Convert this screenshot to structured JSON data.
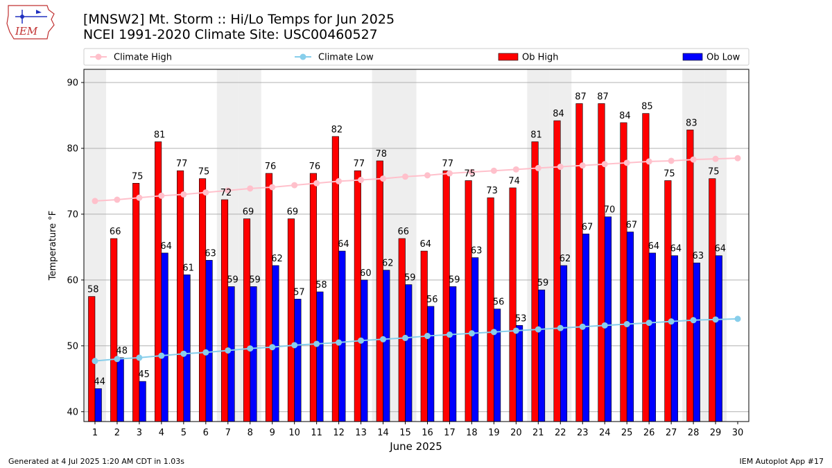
{
  "header": {
    "title_line1": "[MNSW2] Mt. Storm :: Hi/Lo Temps for Jun 2025",
    "title_line2": "NCEI 1991-2020 Climate Site: USC00460527",
    "logo_text": "IEM"
  },
  "footer": {
    "generated": "Generated at 4 Jul 2025 1:20 AM CDT in 1.03s",
    "app": "IEM Autoplot App #17"
  },
  "colors": {
    "climate_high": "#ffc0cb",
    "climate_low": "#87ceeb",
    "ob_high": "#ff0000",
    "ob_low": "#0000ff",
    "weekend_band": "#eeeeee",
    "grid": "#b0b0b0"
  },
  "chart_data": {
    "type": "bar",
    "xlabel": "June 2025",
    "ylabel": "Temperature °F",
    "ylim": [
      38.5,
      92
    ],
    "yticks": [
      40,
      50,
      60,
      70,
      80,
      90
    ],
    "grid": "horizontal",
    "legend_placement": "top",
    "x": [
      1,
      2,
      3,
      4,
      5,
      6,
      7,
      8,
      9,
      10,
      11,
      12,
      13,
      14,
      15,
      16,
      17,
      18,
      19,
      20,
      21,
      22,
      23,
      24,
      25,
      26,
      27,
      28,
      29,
      30
    ],
    "weekend_days": [
      1,
      7,
      8,
      14,
      15,
      21,
      22,
      28,
      29
    ],
    "series": [
      {
        "name": "Climate High",
        "kind": "line",
        "values": [
          72.0,
          72.2,
          72.5,
          72.8,
          73.0,
          73.3,
          73.6,
          73.9,
          74.1,
          74.4,
          74.7,
          75.0,
          75.2,
          75.4,
          75.7,
          75.9,
          76.2,
          76.4,
          76.6,
          76.8,
          77.0,
          77.2,
          77.4,
          77.6,
          77.8,
          78.0,
          78.1,
          78.3,
          78.4,
          78.5
        ]
      },
      {
        "name": "Climate Low",
        "kind": "line",
        "values": [
          47.7,
          48.0,
          48.2,
          48.5,
          48.8,
          49.0,
          49.3,
          49.6,
          49.8,
          50.1,
          50.3,
          50.5,
          50.8,
          51.0,
          51.2,
          51.5,
          51.7,
          51.9,
          52.1,
          52.3,
          52.5,
          52.7,
          52.9,
          53.1,
          53.3,
          53.5,
          53.7,
          53.9,
          54.0,
          54.1
        ]
      },
      {
        "name": "Ob High",
        "kind": "bar",
        "values": [
          57.5,
          66.3,
          74.7,
          81.0,
          76.6,
          75.4,
          72.2,
          69.3,
          76.2,
          69.3,
          76.2,
          81.8,
          76.6,
          78.1,
          66.3,
          64.4,
          76.6,
          75.1,
          72.5,
          74.0,
          81.0,
          84.2,
          86.8,
          86.8,
          83.9,
          85.3,
          75.1,
          82.8,
          75.4,
          null
        ],
        "labels": [
          "58",
          "66",
          "75",
          "81",
          "77",
          "75",
          "72",
          "69",
          "76",
          "69",
          "76",
          "82",
          "77",
          "78",
          "66",
          "64",
          "77",
          "75",
          "73",
          "74",
          "81",
          "84",
          "87",
          "87",
          "84",
          "85",
          "75",
          "83",
          "75",
          ""
        ]
      },
      {
        "name": "Ob Low",
        "kind": "bar",
        "values": [
          43.5,
          48.2,
          44.6,
          64.1,
          60.8,
          63.0,
          59.0,
          59.0,
          62.2,
          57.1,
          58.2,
          64.4,
          60.0,
          61.5,
          59.3,
          56.0,
          59.0,
          63.4,
          55.6,
          53.1,
          58.5,
          62.2,
          67.0,
          69.6,
          67.3,
          64.1,
          63.7,
          62.6,
          63.7,
          null
        ],
        "labels": [
          "44",
          "48",
          "45",
          "64",
          "61",
          "63",
          "59",
          "59",
          "62",
          "57",
          "58",
          "64",
          "60",
          "62",
          "59",
          "56",
          "59",
          "63",
          "56",
          "53",
          "59",
          "62",
          "67",
          "70",
          "67",
          "64",
          "64",
          "63",
          "64",
          ""
        ]
      }
    ]
  }
}
